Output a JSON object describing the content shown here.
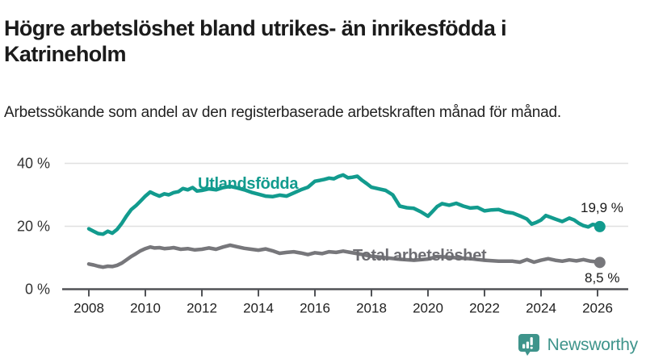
{
  "header": {
    "title": "Högre arbetslöshet bland utrikes- än inrikesfödda i Katrineholm",
    "subtitle": "Arbetssökande som andel av den registerbaserade arbetskraften månad för månad."
  },
  "chart_data": {
    "type": "line",
    "unit": "%",
    "grid": "horizontal gridlines at 20 and 40",
    "legend_position": "inline labels on lines",
    "ylim": [
      0,
      44
    ],
    "xlim": [
      2008,
      2026.6
    ],
    "y_ticks": [
      {
        "value": 0,
        "label": "0 %"
      },
      {
        "value": 20,
        "label": "20 %"
      },
      {
        "value": 40,
        "label": "40 %"
      }
    ],
    "x_ticks": [
      "2008",
      "2010",
      "2012",
      "2014",
      "2016",
      "2018",
      "2020",
      "2022",
      "2024",
      "2026"
    ],
    "series": [
      {
        "name": "Utlandsfödda",
        "color": "#129b8e",
        "end_label": "19,9 %",
        "end_value": 19.9,
        "x": [
          2008.0,
          2008.17,
          2008.33,
          2008.5,
          2008.67,
          2008.83,
          2009.0,
          2009.17,
          2009.33,
          2009.5,
          2009.67,
          2009.83,
          2010.0,
          2010.17,
          2010.33,
          2010.5,
          2010.67,
          2010.83,
          2011.0,
          2011.17,
          2011.33,
          2011.5,
          2011.67,
          2011.83,
          2012.0,
          2012.25,
          2012.5,
          2012.75,
          2013.0,
          2013.25,
          2013.5,
          2013.75,
          2014.0,
          2014.25,
          2014.5,
          2014.75,
          2015.0,
          2015.25,
          2015.5,
          2015.75,
          2016.0,
          2016.17,
          2016.33,
          2016.5,
          2016.67,
          2016.83,
          2017.0,
          2017.17,
          2017.33,
          2017.5,
          2017.67,
          2017.83,
          2018.0,
          2018.25,
          2018.5,
          2018.75,
          2019.0,
          2019.25,
          2019.5,
          2019.75,
          2020.0,
          2020.17,
          2020.33,
          2020.5,
          2020.75,
          2021.0,
          2021.25,
          2021.5,
          2021.75,
          2022.0,
          2022.25,
          2022.5,
          2022.75,
          2023.0,
          2023.25,
          2023.5,
          2023.67,
          2023.83,
          2024.0,
          2024.17,
          2024.33,
          2024.5,
          2024.75,
          2025.0,
          2025.17,
          2025.33,
          2025.5,
          2025.67,
          2025.83,
          2026.0,
          2026.08
        ],
        "values": [
          19.2,
          18.4,
          17.7,
          17.5,
          18.4,
          17.8,
          19.0,
          21.0,
          23.2,
          25.3,
          26.6,
          28.0,
          29.6,
          30.9,
          30.2,
          29.6,
          30.3,
          30.0,
          30.7,
          31.0,
          32.0,
          31.6,
          32.3,
          31.2,
          31.4,
          31.9,
          31.6,
          32.3,
          32.7,
          32.2,
          31.6,
          30.8,
          30.2,
          29.6,
          29.4,
          29.9,
          29.6,
          30.6,
          31.6,
          32.4,
          34.3,
          34.6,
          34.9,
          35.3,
          35.1,
          35.8,
          36.3,
          35.4,
          35.6,
          35.9,
          34.6,
          33.6,
          32.4,
          31.9,
          31.4,
          30.0,
          26.4,
          25.9,
          25.7,
          24.6,
          23.2,
          24.8,
          26.3,
          27.2,
          26.7,
          27.3,
          26.4,
          25.8,
          26.0,
          24.9,
          25.2,
          25.3,
          24.5,
          24.2,
          23.3,
          22.3,
          20.7,
          21.2,
          22.0,
          23.4,
          22.9,
          22.3,
          21.5,
          22.6,
          22.0,
          21.0,
          20.2,
          19.8,
          20.6,
          20.3,
          19.9
        ]
      },
      {
        "name": "Total arbetslöshet",
        "color": "#77777b",
        "end_label": "8,5 %",
        "end_value": 8.5,
        "x": [
          2008.0,
          2008.17,
          2008.33,
          2008.5,
          2008.67,
          2008.83,
          2009.0,
          2009.17,
          2009.33,
          2009.5,
          2009.67,
          2009.83,
          2010.0,
          2010.17,
          2010.33,
          2010.5,
          2010.67,
          2010.83,
          2011.0,
          2011.25,
          2011.5,
          2011.75,
          2012.0,
          2012.25,
          2012.5,
          2012.75,
          2013.0,
          2013.25,
          2013.5,
          2013.75,
          2014.0,
          2014.25,
          2014.5,
          2014.75,
          2015.0,
          2015.25,
          2015.5,
          2015.75,
          2016.0,
          2016.25,
          2016.5,
          2016.75,
          2017.0,
          2017.25,
          2017.5,
          2017.75,
          2018.0,
          2018.5,
          2019.0,
          2019.5,
          2020.0,
          2020.33,
          2020.67,
          2021.0,
          2021.5,
          2022.0,
          2022.5,
          2023.0,
          2023.25,
          2023.5,
          2023.75,
          2024.0,
          2024.25,
          2024.5,
          2024.75,
          2025.0,
          2025.25,
          2025.5,
          2025.75,
          2026.0,
          2026.08
        ],
        "values": [
          8.0,
          7.7,
          7.3,
          7.0,
          7.3,
          7.2,
          7.6,
          8.3,
          9.3,
          10.4,
          11.3,
          12.2,
          12.9,
          13.4,
          13.1,
          13.2,
          12.9,
          13.0,
          13.2,
          12.7,
          12.9,
          12.5,
          12.7,
          13.1,
          12.7,
          13.4,
          14.0,
          13.5,
          13.0,
          12.7,
          12.4,
          12.8,
          12.2,
          11.4,
          11.7,
          11.9,
          11.5,
          11.0,
          11.6,
          11.3,
          11.9,
          11.7,
          12.1,
          11.7,
          11.3,
          10.9,
          10.5,
          10.0,
          9.5,
          9.2,
          9.6,
          10.4,
          10.2,
          10.0,
          9.7,
          9.2,
          8.9,
          8.9,
          8.6,
          9.4,
          8.6,
          9.2,
          9.7,
          9.2,
          8.9,
          9.3,
          9.0,
          9.4,
          8.9,
          8.7,
          8.5
        ]
      }
    ],
    "colors": {
      "axis": "#505256",
      "gridline": "#e0e0e0",
      "tick_label": "#1f1f1f",
      "y_label": "#333333"
    }
  },
  "footer": {
    "brand": "Newsworthy",
    "logo_icon": "newsworthy-speech-bubble-bar-chart-icon",
    "brand_color": "#3e948b"
  }
}
